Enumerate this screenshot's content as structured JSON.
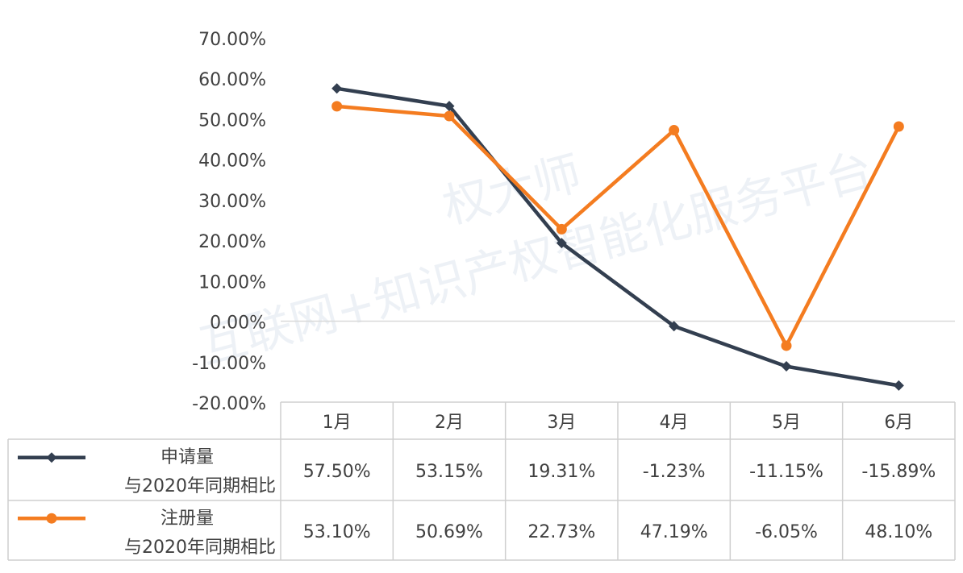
{
  "watermark": {
    "line1": "权大师",
    "line2": "互联网+知识产权智能化服务平台"
  },
  "chart_data": {
    "type": "line",
    "categories": [
      "1月",
      "2月",
      "3月",
      "4月",
      "5月",
      "6月"
    ],
    "ylim": [
      -20,
      70
    ],
    "yticks": [
      "70.00%",
      "60.00%",
      "50.00%",
      "40.00%",
      "30.00%",
      "20.00%",
      "10.00%",
      "0.00%",
      "-10.00%",
      "-20.00%"
    ],
    "ytick_values": [
      70,
      60,
      50,
      40,
      30,
      20,
      10,
      0,
      -10,
      -20
    ],
    "grid": false,
    "legend": "data-table",
    "series": [
      {
        "name_line1": "申请量",
        "name_line2": "与2020年同期相比",
        "color": "#333f50",
        "marker": "diamond",
        "values": [
          57.5,
          53.15,
          19.31,
          -1.23,
          -11.15,
          -15.89
        ],
        "labels": [
          "57.50%",
          "53.15%",
          "19.31%",
          "-1.23%",
          "-11.15%",
          "-15.89%"
        ]
      },
      {
        "name_line1": "注册量",
        "name_line2": "与2020年同期相比",
        "color": "#f47c20",
        "marker": "circle",
        "values": [
          53.1,
          50.69,
          22.73,
          47.19,
          -6.05,
          48.1
        ],
        "labels": [
          "53.10%",
          "50.69%",
          "22.73%",
          "47.19%",
          "-6.05%",
          "48.10%"
        ]
      }
    ]
  }
}
